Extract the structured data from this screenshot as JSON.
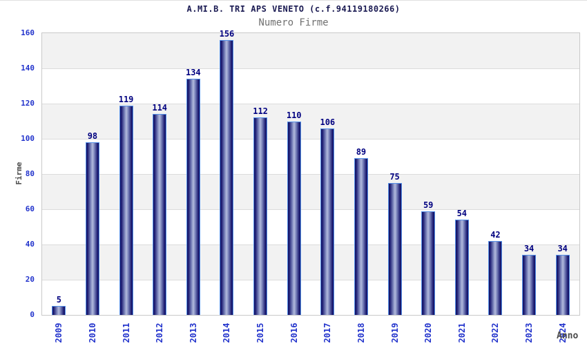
{
  "chart_data": {
    "type": "bar",
    "title": "A.MI.B. TRI APS VENETO (c.f.94119180266)",
    "subtitle": "Numero Firme",
    "xlabel": "Anno",
    "ylabel": "Firme",
    "categories": [
      "2009",
      "2010",
      "2011",
      "2012",
      "2013",
      "2014",
      "2015",
      "2016",
      "2017",
      "2018",
      "2019",
      "2020",
      "2021",
      "2022",
      "2023",
      "2024"
    ],
    "values": [
      5,
      98,
      119,
      114,
      134,
      156,
      112,
      110,
      106,
      89,
      75,
      59,
      54,
      42,
      34,
      34
    ],
    "ylim": [
      0,
      160
    ],
    "ytick_step": 20,
    "yticks": [
      0,
      20,
      40,
      60,
      80,
      100,
      120,
      140,
      160
    ],
    "legend": "none",
    "grid": "horizontal-bands-alternating",
    "colors": {
      "title": "#1a1a52",
      "subtitle": "#707070",
      "axis_tick": "#2233cc",
      "value_label": "#000080",
      "axis_title": "#4a4a4a",
      "band_gray": "#f2f2f2",
      "band_white": "#ffffff",
      "gridline": "#dcdcdc",
      "plot_border": "#c9c9c9",
      "bar_border": "#5590e8",
      "bar_dark": "#131363",
      "bar_edge": "#1d1d74",
      "bar_mid": "#7e87bd",
      "bar_light": "#b2badd"
    }
  }
}
